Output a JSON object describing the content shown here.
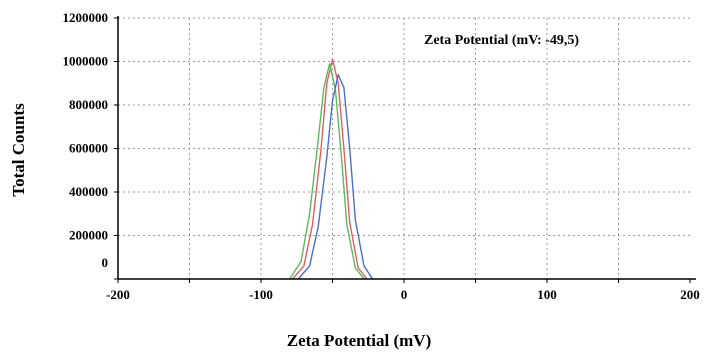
{
  "chart_data": {
    "type": "line",
    "title": "",
    "xlabel": "Zeta Potential (mV)",
    "ylabel": "Total Counts",
    "xlim": [
      -200,
      200
    ],
    "ylim": [
      0,
      1200000
    ],
    "x_ticks": [
      -200,
      -100,
      0,
      100,
      200
    ],
    "x_tick_labels": [
      "-200",
      "-100",
      "0",
      "100",
      "200"
    ],
    "y_ticks": [
      0,
      200000,
      400000,
      600000,
      800000,
      1000000,
      1200000
    ],
    "y_tick_labels": [
      "0",
      "200000",
      "400000",
      "600000",
      "800000",
      "1000000",
      "1200000"
    ],
    "grid": true,
    "annotation": "Zeta Potential (mV: -49,5)",
    "series": [
      {
        "color": "#e06060",
        "x": [
          -78,
          -70,
          -64,
          -58,
          -54,
          -50,
          -46,
          -42,
          -38,
          -32,
          -26
        ],
        "y": [
          0,
          60000,
          250000,
          600000,
          900000,
          1010000,
          900000,
          600000,
          260000,
          50000,
          0
        ]
      },
      {
        "color": "#5fb85f",
        "x": [
          -80,
          -72,
          -66,
          -60,
          -56,
          -52,
          -48,
          -44,
          -40,
          -34,
          -28
        ],
        "y": [
          0,
          80000,
          300000,
          640000,
          880000,
          990000,
          870000,
          580000,
          250000,
          50000,
          0
        ]
      },
      {
        "color": "#4a6fc8",
        "x": [
          -74,
          -66,
          -60,
          -54,
          -50,
          -46,
          -42,
          -38,
          -34,
          -28,
          -22
        ],
        "y": [
          0,
          60000,
          240000,
          560000,
          820000,
          940000,
          880000,
          600000,
          270000,
          60000,
          0
        ]
      }
    ]
  }
}
